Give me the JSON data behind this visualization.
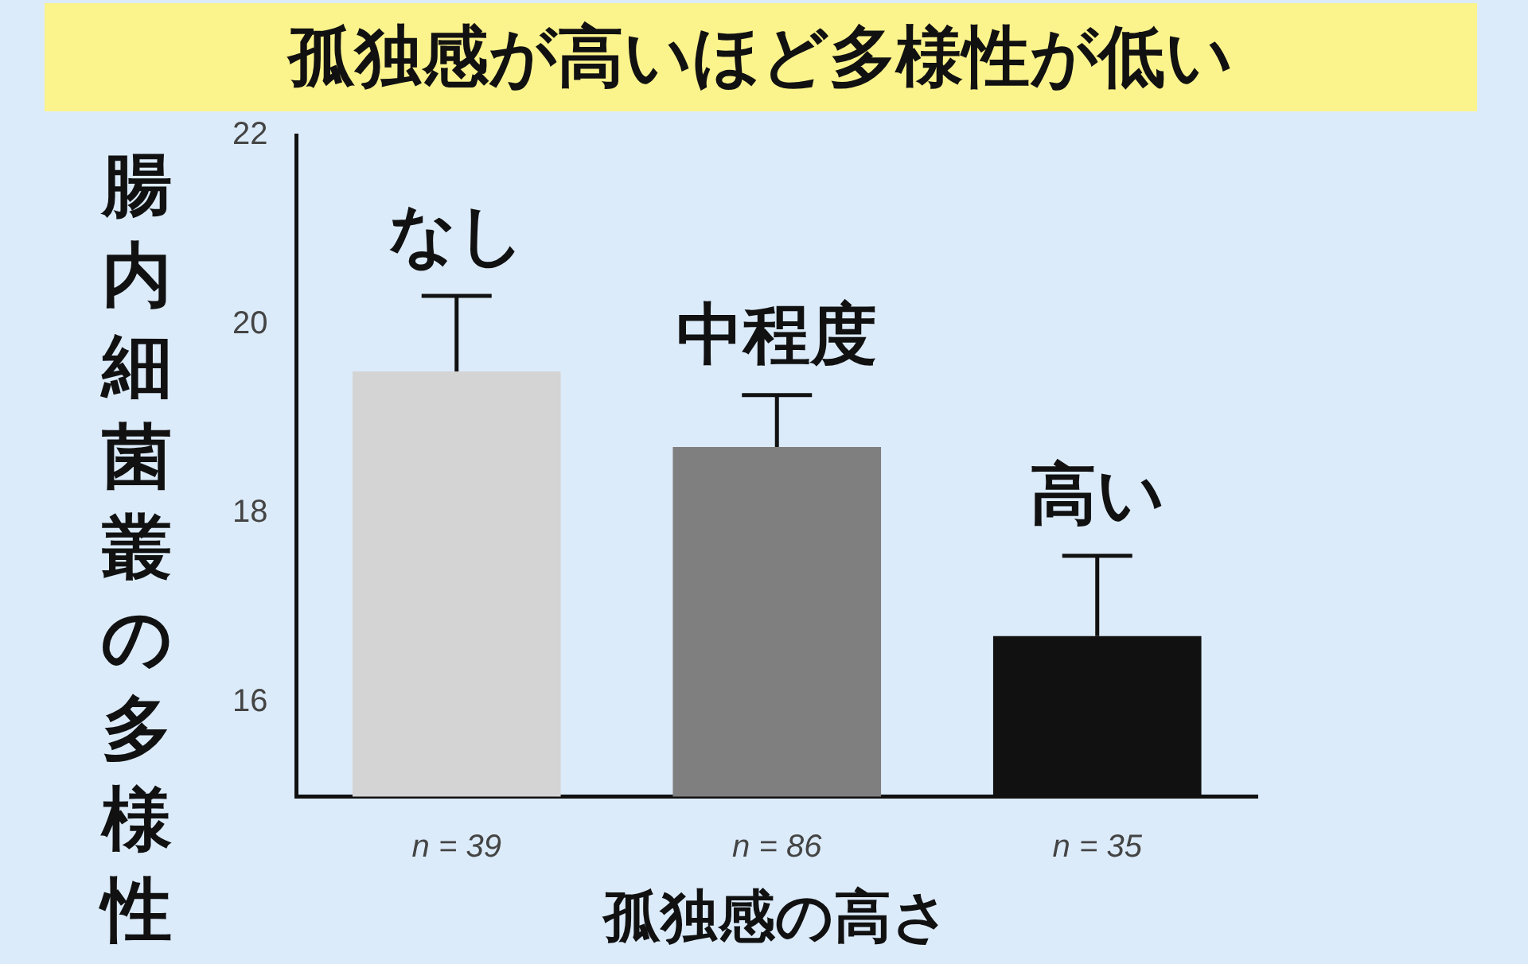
{
  "chart_data": {
    "type": "bar",
    "title": "孤独感が高いほど多様性が低い",
    "xlabel": "孤独感の高さ",
    "ylabel": "腸内細菌叢の多様性",
    "categories": [
      "n = 39",
      "n = 86",
      "n = 35"
    ],
    "values": [
      19.5,
      18.7,
      16.7
    ],
    "colors": [
      "#d4d4d4",
      "#7f7f7f",
      "#111111"
    ],
    "errors": [
      [
        19.5,
        20.3
      ],
      [
        18.7,
        19.25
      ],
      [
        16.7,
        17.55
      ]
    ],
    "ylim": [
      15,
      22
    ],
    "yticks": [
      16,
      18,
      20,
      22
    ],
    "grid": false,
    "legend": false,
    "annotations": [
      "なし",
      "中程度",
      "高い"
    ]
  }
}
